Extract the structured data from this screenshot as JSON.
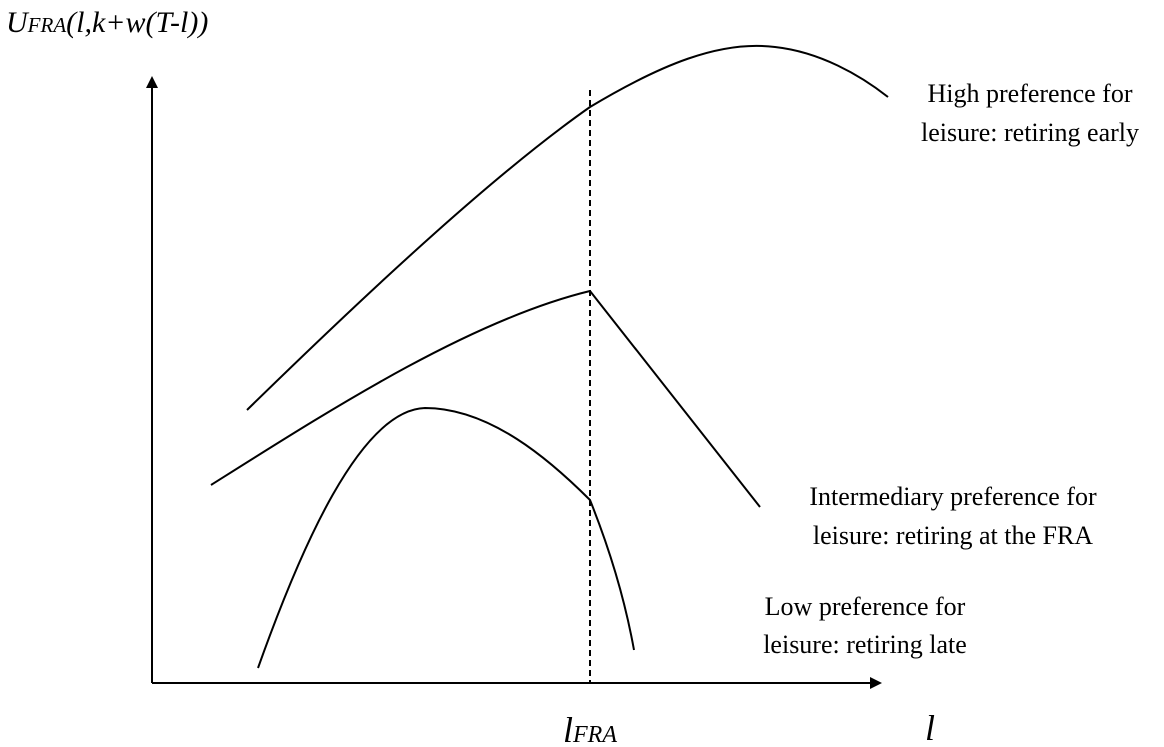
{
  "y_axis_label": {
    "main": "U",
    "sub": "FRA",
    "args": "(l,k+w(T-l))"
  },
  "x_marker_label": {
    "main": "l",
    "sub": "FRA"
  },
  "x_axis_label": "l",
  "curves": [
    {
      "lines": [
        "High preference for",
        "leisure: retiring early"
      ]
    },
    {
      "lines": [
        "Intermediary preference for",
        "leisure: retiring at the FRA"
      ]
    },
    {
      "lines": [
        "Low preference for",
        "leisure: retiring late"
      ]
    }
  ]
}
